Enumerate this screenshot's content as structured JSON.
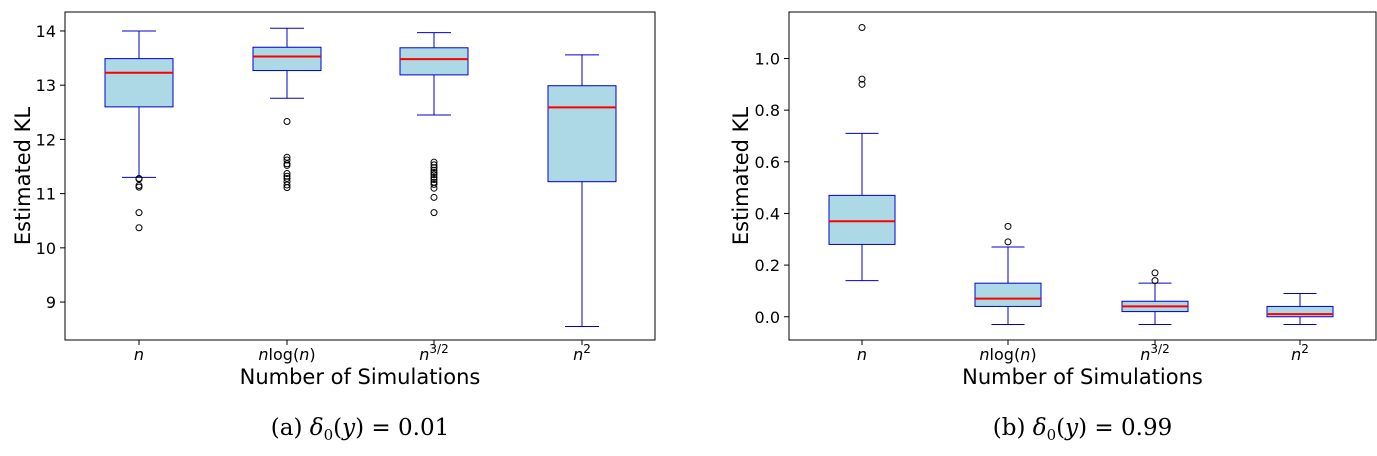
{
  "colors": {
    "box_fill": "#add8e6",
    "box_edge": "#0000cd",
    "median": "#ff0000",
    "outlier_edge": "#000000"
  },
  "chart_data": [
    {
      "type": "box",
      "title": "",
      "caption_label": "(a)",
      "caption_formula": "δ0(y) = 0.01",
      "xlabel": "Number of Simulations",
      "ylabel": "Estimated KL",
      "ylim": [
        8.3,
        14.35
      ],
      "yticks": [
        9,
        10,
        11,
        12,
        13,
        14
      ],
      "grid": false,
      "categories": [
        "n",
        "nlog(n)",
        "n^3/2",
        "n^2"
      ],
      "boxes": [
        {
          "whisker_low": 11.3,
          "q1": 12.6,
          "median": 13.23,
          "q3": 13.49,
          "whisker_high": 14.0,
          "outliers": [
            11.28,
            11.27,
            11.15,
            11.12,
            10.65,
            10.37
          ]
        },
        {
          "whisker_low": 12.76,
          "q1": 13.27,
          "median": 13.53,
          "q3": 13.7,
          "whisker_high": 14.05,
          "outliers": [
            12.33,
            11.67,
            11.62,
            11.55,
            11.52,
            11.37,
            11.32,
            11.28,
            11.22,
            11.16,
            11.11
          ]
        },
        {
          "whisker_low": 12.45,
          "q1": 13.19,
          "median": 13.48,
          "q3": 13.69,
          "whisker_high": 13.97,
          "outliers": [
            11.58,
            11.53,
            11.48,
            11.43,
            11.39,
            11.35,
            11.3,
            11.26,
            11.21,
            11.17,
            11.1,
            10.93,
            10.65
          ]
        },
        {
          "whisker_low": 8.55,
          "q1": 11.22,
          "median": 12.59,
          "q3": 12.99,
          "whisker_high": 13.56,
          "outliers": []
        }
      ]
    },
    {
      "type": "box",
      "title": "",
      "caption_label": "(b)",
      "caption_formula": "δ0(y) = 0.99",
      "xlabel": "Number of Simulations",
      "ylabel": "Estimated KL",
      "ylim": [
        -0.09,
        1.18
      ],
      "yticks": [
        0.0,
        0.2,
        0.4,
        0.6,
        0.8,
        1.0
      ],
      "ytick_labels": [
        "0.0",
        "0.2",
        "0.4",
        "0.6",
        "0.8",
        "1.0"
      ],
      "grid": false,
      "categories": [
        "n",
        "nlog(n)",
        "n^3/2",
        "n^2"
      ],
      "boxes": [
        {
          "whisker_low": 0.14,
          "q1": 0.28,
          "median": 0.37,
          "q3": 0.47,
          "whisker_high": 0.71,
          "outliers": [
            1.12,
            0.92,
            0.9
          ]
        },
        {
          "whisker_low": -0.03,
          "q1": 0.04,
          "median": 0.07,
          "q3": 0.13,
          "whisker_high": 0.27,
          "outliers": [
            0.35,
            0.29
          ]
        },
        {
          "whisker_low": -0.03,
          "q1": 0.02,
          "median": 0.04,
          "q3": 0.06,
          "whisker_high": 0.13,
          "outliers": [
            0.17,
            0.14
          ]
        },
        {
          "whisker_low": -0.03,
          "q1": 0.0,
          "median": 0.01,
          "q3": 0.04,
          "whisker_high": 0.09,
          "outliers": []
        }
      ]
    }
  ]
}
